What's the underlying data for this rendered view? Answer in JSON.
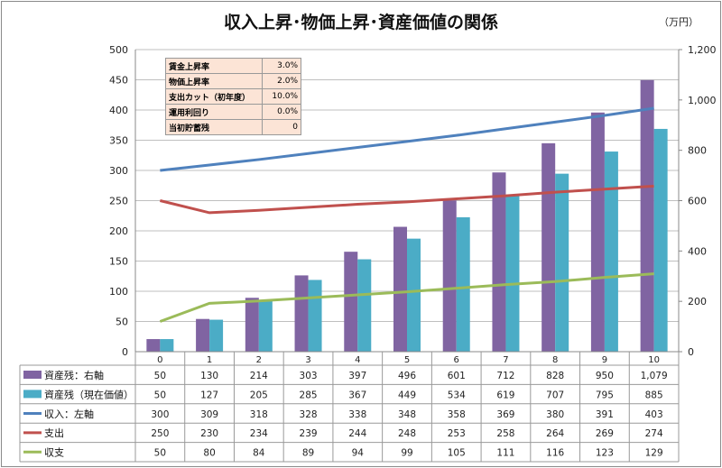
{
  "title": "収入上昇･物価上昇･資産価値の関係",
  "unit_label": "（万円）",
  "params": [
    {
      "label": "賃金上昇率",
      "value": "3.0%"
    },
    {
      "label": "物価上昇率",
      "value": "2.0%"
    },
    {
      "label": "支出カット（初年度）",
      "value": "10.0%"
    },
    {
      "label": "運用利回り",
      "value": "0.0%"
    },
    {
      "label": "当初貯蓄残",
      "value": "0"
    }
  ],
  "chart_data": {
    "type": "bar+line",
    "categories": [
      "0",
      "1",
      "2",
      "3",
      "4",
      "5",
      "6",
      "7",
      "8",
      "9",
      "10"
    ],
    "left_axis": {
      "range": [
        0,
        500
      ],
      "ticks": [
        "0",
        "50",
        "100",
        "150",
        "200",
        "250",
        "300",
        "350",
        "400",
        "450",
        "500"
      ]
    },
    "right_axis": {
      "range": [
        0,
        1200
      ],
      "ticks": [
        "0",
        "200",
        "400",
        "600",
        "800",
        "1,000",
        "1,200"
      ]
    },
    "grid": "horizontal",
    "series": [
      {
        "name": "資産残：右軸",
        "kind": "bar",
        "axis": "right",
        "color": "#8064a2",
        "values": [
          50,
          130,
          214,
          303,
          397,
          496,
          601,
          712,
          828,
          950,
          1079
        ],
        "labels": [
          "50",
          "130",
          "214",
          "303",
          "397",
          "496",
          "601",
          "712",
          "828",
          "950",
          "1,079"
        ]
      },
      {
        "name": "資産残（現在価値）",
        "kind": "bar",
        "axis": "right",
        "color": "#4bacc6",
        "values": [
          50,
          127,
          205,
          285,
          367,
          449,
          534,
          619,
          707,
          795,
          885
        ],
        "labels": [
          "50",
          "127",
          "205",
          "285",
          "367",
          "449",
          "534",
          "619",
          "707",
          "795",
          "885"
        ]
      },
      {
        "name": "収入：左軸",
        "kind": "line",
        "axis": "left",
        "color": "#4f81bd",
        "values": [
          300,
          309,
          318,
          328,
          338,
          348,
          358,
          369,
          380,
          391,
          403
        ],
        "labels": [
          "300",
          "309",
          "318",
          "328",
          "338",
          "348",
          "358",
          "369",
          "380",
          "391",
          "403"
        ]
      },
      {
        "name": "支出",
        "kind": "line",
        "axis": "left",
        "color": "#c0504d",
        "values": [
          250,
          230,
          234,
          239,
          244,
          248,
          253,
          258,
          264,
          269,
          274
        ],
        "labels": [
          "250",
          "230",
          "234",
          "239",
          "244",
          "248",
          "253",
          "258",
          "264",
          "269",
          "274"
        ]
      },
      {
        "name": "収支",
        "kind": "line",
        "axis": "left",
        "color": "#9bbb59",
        "values": [
          50,
          80,
          84,
          89,
          94,
          99,
          105,
          111,
          116,
          123,
          129
        ],
        "labels": [
          "50",
          "80",
          "84",
          "89",
          "94",
          "99",
          "105",
          "111",
          "116",
          "123",
          "129"
        ]
      }
    ]
  }
}
